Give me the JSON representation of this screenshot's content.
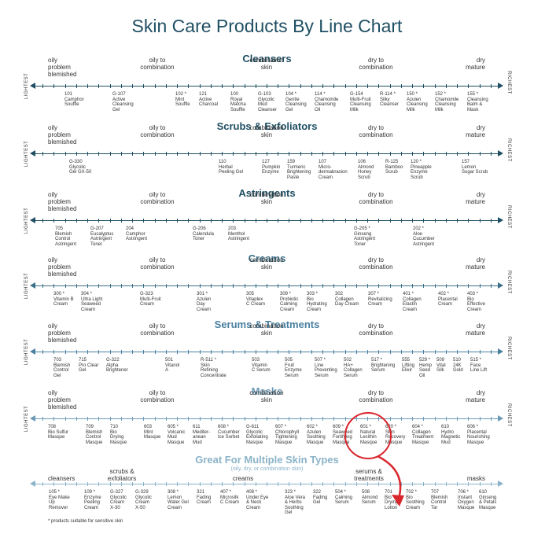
{
  "title": "Skin Care Products By Line Chart",
  "left_label": "LIGHTEST",
  "right_label": "RICHEST",
  "footnote": "* products suitable for sensitive skin",
  "skin_labels": {
    "oily": "oily\nproblem\nblemished",
    "oily_to_combination": "oily to\ncombination",
    "combination": "combination\nskin",
    "dry_to_combination": "dry to\ncombination",
    "dry": "dry\nmature"
  },
  "sections": [
    {
      "title": "Cleansers",
      "color": "#1f4f63",
      "products": [
        "101\nCamphor\nSouffle",
        "G-107\nActive\nCleansing\nGel",
        "102 *\nMint\nSouffle",
        "121\nActive\nCharcoal",
        "100\nRoyal\nMatcha\nSouffle",
        "G-103\nGlycolic\nMud\nCleanser",
        "104 *\nGentle\nCleansing\nGel",
        "114 *\nChamomile\nCleansing\nOil",
        "G-154\nMulti-Fruit\nCleansing\nMilk",
        "R-114 *\nSilky\nCleanser",
        "150 *\nAzulen\nCleansing\nMilk",
        "152 *\nChamomile\nCleansing\nMilk",
        "155 *\nCleansing\nBalm &\nMask"
      ]
    },
    {
      "title": "Scrubs & Exfoliators",
      "color": "#1f4f63",
      "products": [
        "G-330\nGlycolic\nGel GX-50",
        "110\nHerbal\nPeeling Gel",
        "127\nPumpkin\nEnzyme",
        "159\nTurmeric\nBrightening\nPaste",
        "107\nMicro-\ndermabrasion\nCream",
        "106\nAlmond\nHoney\nScrub",
        "R-125\nBamboo\nScrub",
        "120 *\nPineapple\nEnzyme\nScrub",
        "157\nLemon\nSugar Scrub"
      ]
    },
    {
      "title": "Astringents",
      "color": "#1f4f63",
      "products": [
        "705\nBlemish\nControl\nAstringent",
        "G-207\nEucalyptus\nAstringent\nToner",
        "204\nCamphor\nAstringent",
        "G-206\nCalendula\nToner",
        "203\nMenthol\nAstringent",
        "G-205 *\nGinseng\nAstringent\nToner",
        "202 *\nAloe\nCucumber\nAstringent"
      ]
    },
    {
      "title": "Creams",
      "color": "#3a7088",
      "products": [
        "300 *\nVitamin B\nCream",
        "304 *\nUltra Light\nSeaweed\nCream",
        "G-323\nMulti-Fruit\nCream",
        "301 *\nAzulen\nDay\nCream",
        "305\nVitaplex\nC Cream",
        "309 *\nProbiotic\nCalming\nCream",
        "303 *\nBio\nHydrating\nCream",
        "302\nCollagen\nDay Cream",
        "307 *\nRevitalizing\nCream",
        "401 *\nCollagen\nElastin\nCream",
        "402 *\nPlacental\nCream",
        "403 *\nBio\nEffective\nCream"
      ]
    },
    {
      "title": "Serums & Treatments",
      "color": "#4a80a0",
      "products": [
        "703\nBlemish\nControl\nGel",
        "715\nPro Clear\nGel",
        "G-322\nAlpha\nBrightener",
        "501\nVitanol\nA",
        "R-511 *\nSkin\nRefining\nConcentrate",
        "503\nVitamin\nC Serum",
        "505\nFruit\nEnzyme\nSerum",
        "507 *\nLine\nPreventing\nSerum",
        "502\nHA+\nCollagen\nSerum",
        "517 *\nBrightening\nSerum",
        "555\nLifting\nElixir",
        "529 *\nHemp\nSeed\nOil",
        "509\nVital\nSilk",
        "510\n24K\nGold",
        "515 *\nFace\nLine Lift"
      ]
    },
    {
      "title": "Masks",
      "color": "#6a9ab8",
      "products": [
        "708\nBio Sulfur\nMasque",
        "709\nBlemish\nControl\nMasque",
        "710\nBio\nDrying\nMasque",
        "603\nMint\nMasque",
        "605 *\nVolcanic\nMud\nMasque",
        "611\nMediter-\nanean\nMud",
        "608 *\nCucumber\nIce Sorbet",
        "G-611\nGlycolic\nExfoliating\nMasque",
        "607 *\nChlorophyll\nTightening\nMasque",
        "602 *\nAzulen\nSoothing\nMasque",
        "609 *\nSeaweed\nFortifying\nMasque",
        "601 *\nNatural\nLecithin\nMasque",
        "620 *\nSkin\nRecovery\nMasque",
        "604 *\nCollagen\nTreatment\nMasque",
        "610\nHydro\nMagnetic\nMud",
        "606 *\nPlacental\nNourishing\nMasque"
      ]
    }
  ],
  "multi": {
    "title": "Great For Multiple Skin Types",
    "subtitle": "(oily, dry, or combination skin)",
    "categories": [
      "cleansers",
      "scrubs &\nexfoliators",
      "creams",
      "serums &\ntreatments",
      "masks"
    ],
    "products": [
      "105 *\nEye Make\nUp\nRemover",
      "109 *\nEnzyme\nPeeling\nCream",
      "G-327\nGlycolic\nCream\nX-30",
      "G-329\nGlycolic\nCream\nX-50",
      "308 *\nLemon\nWater Gel\nCream",
      "321\nFading\nCream",
      "407 *\nMicrosilk\nC Cream",
      "408 *\nUnder Eye\n& Neck\nCream",
      "323 *\nAloe Vera\n& Herbs\nSoothing\nGel",
      "322\nFading\nGel",
      "504 *\nCalming\nSerum",
      "508\nAlmond\nSerum",
      "701\nBio\nDrying\nLotion",
      "702 *\nBio\nSoothing\nCream",
      "707\nBlemish\nControl\nTar",
      "706 *\nInstant\nOxygen\nMasque",
      "610\nGinseng\n& Petals\nMasque"
    ]
  }
}
